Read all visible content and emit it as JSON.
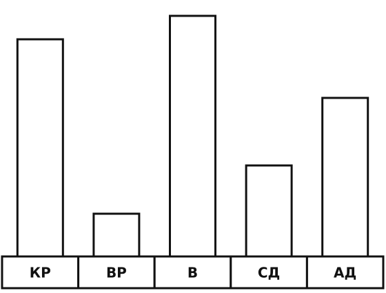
{
  "chart_data": {
    "type": "bar",
    "categories": [
      "КР",
      "ВР",
      "В",
      "СД",
      "АД"
    ],
    "values": [
      315,
      62,
      349,
      132,
      230
    ],
    "color": "#ffffff",
    "ylim": [
      0,
      349
    ]
  }
}
